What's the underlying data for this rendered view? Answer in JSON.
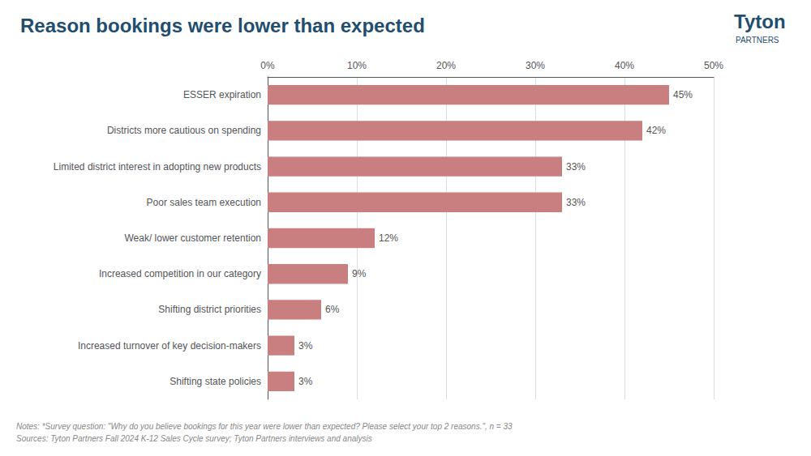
{
  "chart_data": {
    "type": "bar",
    "orientation": "horizontal",
    "title": "Reason bookings were lower than expected",
    "categories": [
      "Shifting state policies",
      "Increased turnover of key decision-makers",
      "Shifting district priorities",
      "Increased competition in our category",
      "Weak/ lower customer retention",
      "Poor sales team execution",
      "Limited district interest in adopting new products",
      "Districts more cautious on spending",
      "ESSER expiration"
    ],
    "values": [
      3,
      3,
      6,
      9,
      12,
      33,
      33,
      42,
      45
    ],
    "value_labels": [
      "3%",
      "3%",
      "6%",
      "9%",
      "12%",
      "33%",
      "33%",
      "42%",
      "45%"
    ],
    "data_labels": true,
    "color": "#c97f7f",
    "xlim": [
      0,
      50
    ],
    "xticks": [
      {
        "value": 0,
        "label": "0%"
      },
      {
        "value": 10,
        "label": "10%"
      },
      {
        "value": 20,
        "label": "20%"
      },
      {
        "value": 30,
        "label": "30%"
      },
      {
        "value": 40,
        "label": "40%"
      },
      {
        "value": 50,
        "label": "50%"
      }
    ],
    "grid": true,
    "notes": [
      "Notes: *Survey question: \"Why do you believe bookings for this year were lower than expected? Please select your top 2 reasons.\", n = 33",
      "Sources: Tyton Partners Fall 2024 K-12 Sales Cycle survey; Tyton Partners interviews and analysis"
    ],
    "annotations": [
      "Tyton",
      "PARTNERS"
    ]
  }
}
